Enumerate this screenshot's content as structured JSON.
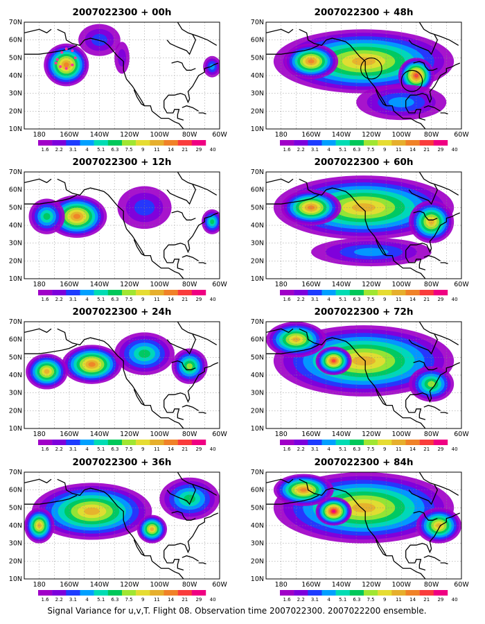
{
  "figure": {
    "caption": "Signal Variance for u,v,T. Flight 08. Observation time 2007022300. 2007022200 ensemble."
  },
  "chart_data": {
    "type": "heatmap",
    "title": "Signal Variance for u,v,T. Flight 08. Observation time 2007022300. 2007022200 ensemble.",
    "map_extent": {
      "lon_min": -190,
      "lon_max": -60,
      "lat_min": 10,
      "lat_max": 70
    },
    "lon_ticks": [
      -180,
      -160,
      -140,
      -120,
      -100,
      -80,
      -60
    ],
    "lat_ticks": [
      10,
      20,
      30,
      40,
      50,
      60,
      70
    ],
    "lon_tick_labels": [
      "180",
      "160W",
      "140W",
      "120W",
      "100W",
      "80W",
      "60W"
    ],
    "lat_tick_labels": [
      "10N",
      "20N",
      "30N",
      "40N",
      "50N",
      "60N",
      "70N"
    ],
    "grid": true,
    "colorbar": {
      "levels": [
        "1.6",
        "2.2",
        "3.1",
        "4",
        "5.1",
        "6.3",
        "7.5",
        "9",
        "11",
        "14",
        "21",
        "29",
        "40"
      ],
      "colors": [
        "#a000c8",
        "#7d00dc",
        "#1e3cff",
        "#00a0ff",
        "#00dcb4",
        "#00c85a",
        "#a0e632",
        "#e6dc32",
        "#e6af2d",
        "#f08228",
        "#fa3c3c",
        "#f00082"
      ]
    },
    "panels": [
      {
        "title": "2007022300 + 00h",
        "lead_hours": 0,
        "blobs": [
          {
            "lon": -162,
            "lat": 46,
            "rx": 15,
            "ry": 12,
            "peak": 9
          },
          {
            "lon": -140,
            "lat": 60,
            "rx": 14,
            "ry": 9,
            "peak": 2
          },
          {
            "lon": -125,
            "lat": 50,
            "rx": 5,
            "ry": 9,
            "peak": 1
          },
          {
            "lon": -65,
            "lat": 45,
            "rx": 6,
            "ry": 6,
            "peak": 3
          }
        ],
        "markers": [
          {
            "kind": "observation-dots",
            "lons": [
              -168,
              -165,
              -162,
              -158,
              -156,
              -158,
              -162,
              -166,
              -169
            ],
            "lats": [
              49,
              53,
              55,
              54,
              50,
              46,
              44,
              45,
              47
            ]
          }
        ]
      },
      {
        "title": "2007022300 + 48h",
        "lead_hours": 48,
        "blobs": [
          {
            "lon": -125,
            "lat": 48,
            "rx": 60,
            "ry": 18,
            "peak": 8
          },
          {
            "lon": -160,
            "lat": 48,
            "rx": 18,
            "ry": 10,
            "peak": 9
          },
          {
            "lon": -90,
            "lat": 40,
            "rx": 12,
            "ry": 10,
            "peak": 10
          },
          {
            "lon": -100,
            "lat": 25,
            "rx": 30,
            "ry": 10,
            "peak": 3
          }
        ],
        "markers": [
          {
            "kind": "circle",
            "lon": -120,
            "lat": 44,
            "r_lon": 7
          },
          {
            "kind": "circle",
            "lon": -93,
            "lat": 37,
            "r_lon": 7
          }
        ]
      },
      {
        "title": "2007022300 + 12h",
        "lead_hours": 12,
        "blobs": [
          {
            "lon": -155,
            "lat": 45,
            "rx": 20,
            "ry": 12,
            "peak": 9
          },
          {
            "lon": -175,
            "lat": 45,
            "rx": 12,
            "ry": 10,
            "peak": 5
          },
          {
            "lon": -110,
            "lat": 50,
            "rx": 18,
            "ry": 12,
            "peak": 2
          },
          {
            "lon": -65,
            "lat": 42,
            "rx": 7,
            "ry": 7,
            "peak": 5
          }
        ],
        "markers": []
      },
      {
        "title": "2007022300 + 60h",
        "lead_hours": 60,
        "blobs": [
          {
            "lon": -125,
            "lat": 50,
            "rx": 60,
            "ry": 18,
            "peak": 8
          },
          {
            "lon": -160,
            "lat": 50,
            "rx": 20,
            "ry": 10,
            "peak": 9
          },
          {
            "lon": -80,
            "lat": 42,
            "rx": 15,
            "ry": 12,
            "peak": 8
          },
          {
            "lon": -120,
            "lat": 25,
            "rx": 40,
            "ry": 8,
            "peak": 3
          }
        ],
        "markers": []
      },
      {
        "title": "2007022300 + 24h",
        "lead_hours": 24,
        "blobs": [
          {
            "lon": -145,
            "lat": 46,
            "rx": 20,
            "ry": 11,
            "peak": 9
          },
          {
            "lon": -175,
            "lat": 42,
            "rx": 14,
            "ry": 10,
            "peak": 8
          },
          {
            "lon": -110,
            "lat": 52,
            "rx": 20,
            "ry": 12,
            "peak": 5
          },
          {
            "lon": -80,
            "lat": 45,
            "rx": 12,
            "ry": 10,
            "peak": 6
          }
        ],
        "markers": []
      },
      {
        "title": "2007022300 + 72h",
        "lead_hours": 72,
        "blobs": [
          {
            "lon": -125,
            "lat": 48,
            "rx": 60,
            "ry": 20,
            "peak": 8
          },
          {
            "lon": -145,
            "lat": 48,
            "rx": 12,
            "ry": 8,
            "peak": 10
          },
          {
            "lon": -170,
            "lat": 60,
            "rx": 20,
            "ry": 10,
            "peak": 8
          },
          {
            "lon": -80,
            "lat": 35,
            "rx": 15,
            "ry": 10,
            "peak": 6
          }
        ],
        "markers": []
      },
      {
        "title": "2007022300 + 36h",
        "lead_hours": 36,
        "blobs": [
          {
            "lon": -145,
            "lat": 48,
            "rx": 40,
            "ry": 16,
            "peak": 8
          },
          {
            "lon": -105,
            "lat": 38,
            "rx": 10,
            "ry": 8,
            "peak": 8
          },
          {
            "lon": -180,
            "lat": 40,
            "rx": 10,
            "ry": 10,
            "peak": 8
          },
          {
            "lon": -80,
            "lat": 55,
            "rx": 20,
            "ry": 12,
            "peak": 5
          }
        ],
        "markers": []
      },
      {
        "title": "2007022300 + 84h",
        "lead_hours": 84,
        "blobs": [
          {
            "lon": -125,
            "lat": 50,
            "rx": 60,
            "ry": 20,
            "peak": 8
          },
          {
            "lon": -145,
            "lat": 48,
            "rx": 12,
            "ry": 8,
            "peak": 11
          },
          {
            "lon": -165,
            "lat": 60,
            "rx": 20,
            "ry": 9,
            "peak": 9
          },
          {
            "lon": -75,
            "lat": 40,
            "rx": 15,
            "ry": 10,
            "peak": 8
          }
        ],
        "markers": []
      }
    ]
  }
}
